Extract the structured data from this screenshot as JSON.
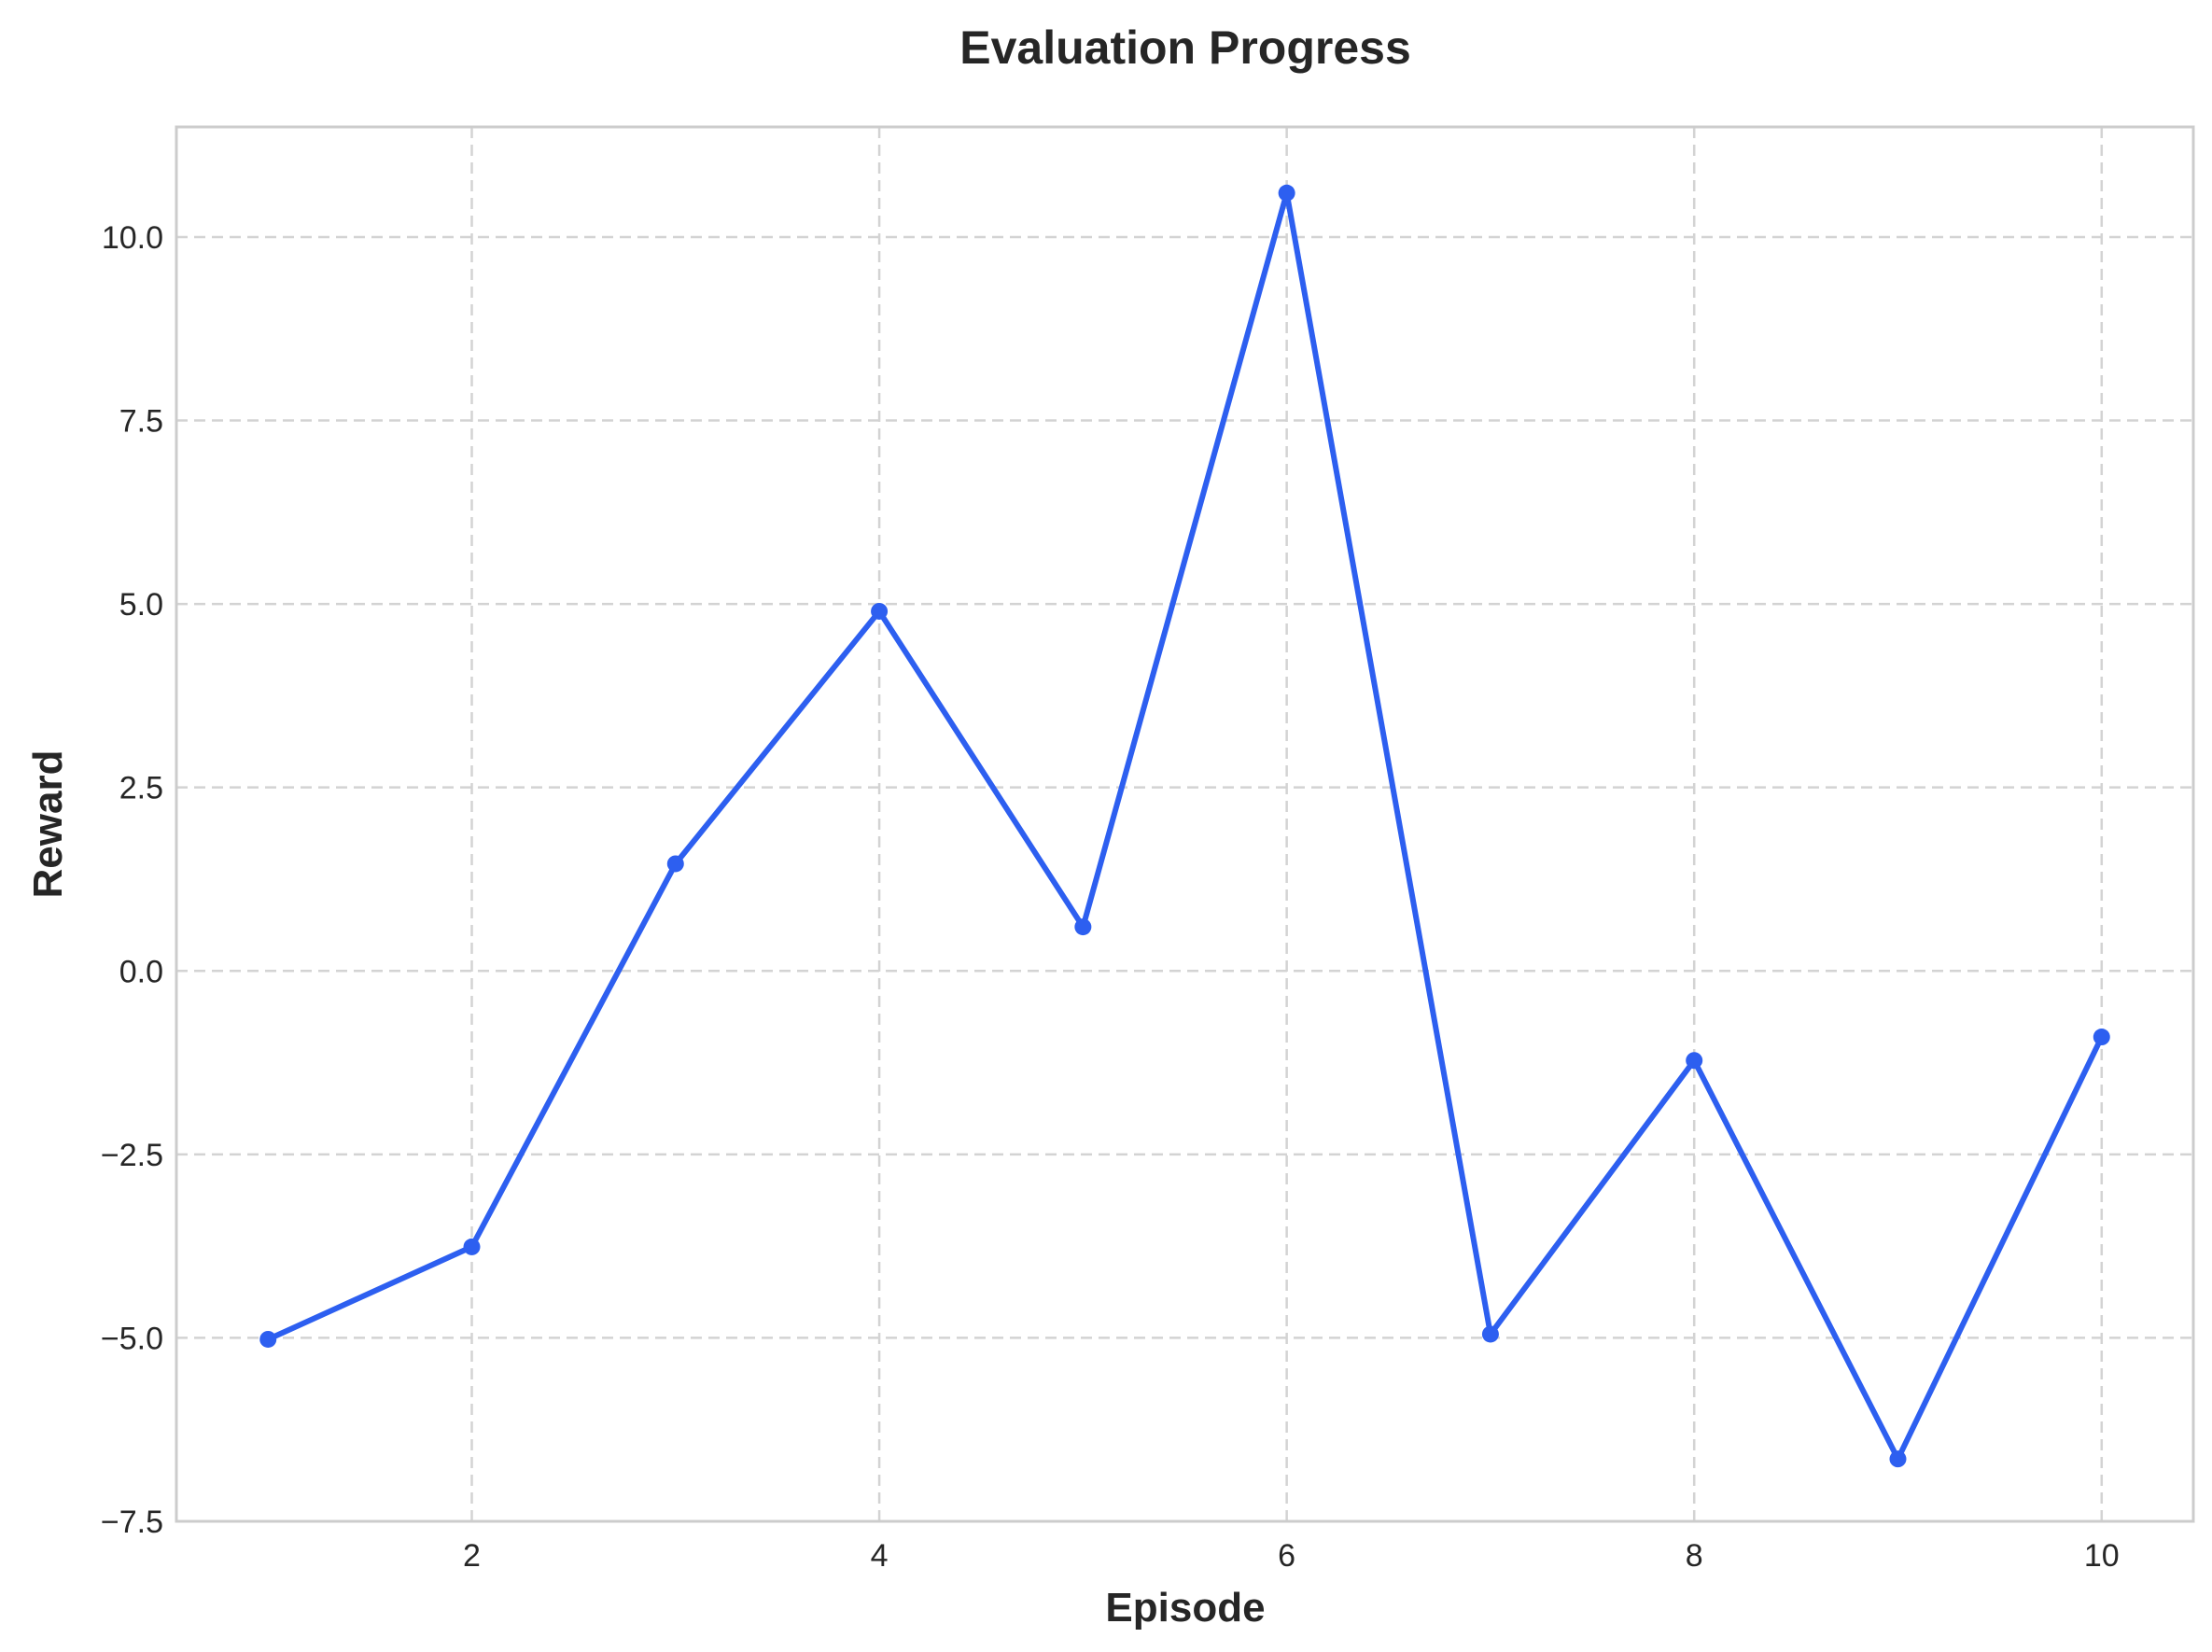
{
  "chart_data": {
    "type": "line",
    "title": "Evaluation Progress",
    "xlabel": "Episode",
    "ylabel": "Reward",
    "xlim": [
      0.55,
      10.45
    ],
    "ylim": [
      -7.5,
      11.5
    ],
    "xticks": [
      2,
      4,
      6,
      8,
      10
    ],
    "xtick_labels": [
      "2",
      "4",
      "6",
      "8",
      "10"
    ],
    "yticks": [
      -7.5,
      -5.0,
      -2.5,
      0.0,
      2.5,
      5.0,
      7.5,
      10.0
    ],
    "ytick_labels": [
      "−7.5",
      "−5.0",
      "−2.5",
      "0.0",
      "2.5",
      "5.0",
      "7.5",
      "10.0"
    ],
    "grid": true,
    "x": [
      1,
      2,
      3,
      4,
      5,
      6,
      7,
      8,
      9,
      10
    ],
    "series": [
      {
        "values": [
          -5.02,
          -3.76,
          1.46,
          4.9,
          0.6,
          10.6,
          -4.95,
          -1.22,
          -6.65,
          -0.9
        ],
        "color": "#2d5ff0"
      }
    ]
  }
}
